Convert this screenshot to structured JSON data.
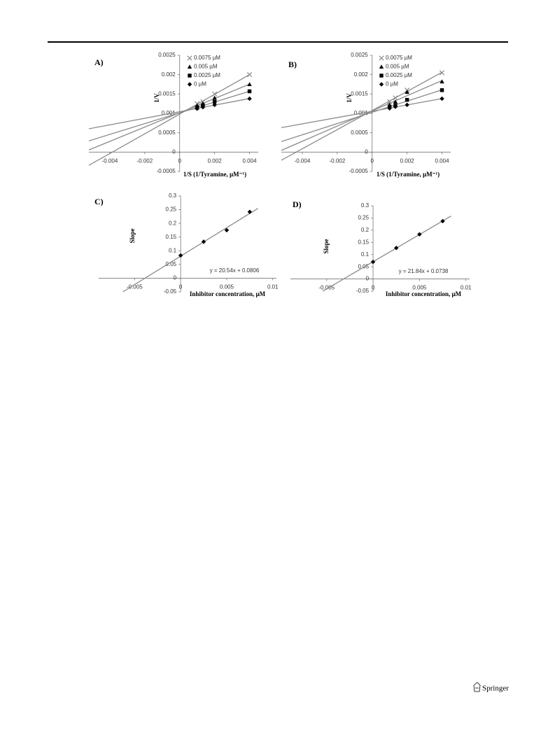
{
  "chart_data": [
    {
      "type": "scatter",
      "panel": "A)",
      "y_label": "1/V",
      "x_label": "1/S (1/Tyramine, µM⁻¹)",
      "x": [
        0.001,
        0.00133,
        0.002,
        0.004
      ],
      "xlim": [
        -0.0052,
        0.0045
      ],
      "xticks": [
        -0.004,
        -0.002,
        0,
        0.002,
        0.004
      ],
      "ylim": [
        -0.0005,
        0.0025
      ],
      "yticks": [
        -0.0005,
        0,
        0.0005,
        0.001,
        0.0015,
        0.002,
        0.0025
      ],
      "trendline": true,
      "line_color": "#8a8a8a",
      "series": [
        {
          "name": "0.0075 µM",
          "marker": "cross",
          "color": "#8a8a8a",
          "values": [
            0.00125,
            0.0013,
            0.0015,
            0.002
          ]
        },
        {
          "name": "0.005 µM",
          "marker": "triangle",
          "color": "#000000",
          "values": [
            0.0012,
            0.00125,
            0.0014,
            0.00175
          ]
        },
        {
          "name": "0.0025 µM",
          "marker": "square",
          "color": "#000000",
          "values": [
            0.00115,
            0.0012,
            0.0013,
            0.00157
          ]
        },
        {
          "name": "0 µM",
          "marker": "diamond",
          "color": "#000000",
          "values": [
            0.00112,
            0.00116,
            0.00122,
            0.00138
          ]
        }
      ]
    },
    {
      "type": "scatter",
      "panel": "B)",
      "y_label": "1/V",
      "x_label": "1/S (1/Tyramine, µM⁻¹)",
      "x": [
        0.001,
        0.00133,
        0.002,
        0.004
      ],
      "xlim": [
        -0.0052,
        0.0045
      ],
      "xticks": [
        -0.004,
        -0.002,
        0,
        0.002,
        0.004
      ],
      "ylim": [
        -0.0005,
        0.0025
      ],
      "yticks": [
        -0.0005,
        0,
        0.0005,
        0.001,
        0.0015,
        0.002,
        0.0025
      ],
      "trendline": true,
      "line_color": "#8a8a8a",
      "series": [
        {
          "name": "0.0075 µM",
          "marker": "cross",
          "color": "#8a8a8a",
          "values": [
            0.0013,
            0.0014,
            0.0016,
            0.00205
          ]
        },
        {
          "name": "0.005 µM",
          "marker": "triangle",
          "color": "#000000",
          "values": [
            0.00122,
            0.0013,
            0.00155,
            0.00182
          ]
        },
        {
          "name": "0.0025 µM",
          "marker": "square",
          "color": "#000000",
          "values": [
            0.00117,
            0.0012,
            0.00135,
            0.0016
          ]
        },
        {
          "name": "0 µM",
          "marker": "diamond",
          "color": "#000000",
          "values": [
            0.00113,
            0.00117,
            0.00122,
            0.00138
          ]
        }
      ]
    },
    {
      "type": "scatter",
      "panel": "C)",
      "y_label": "Slope",
      "x_label": "Inhibitor concentration, µM",
      "annotation": "y = 20.54x + 0.0806",
      "x": [
        0,
        0.0025,
        0.005,
        0.0075
      ],
      "xlim": [
        -0.0089,
        0.0104
      ],
      "xticks": [
        -0.005,
        0,
        0.005,
        0.01
      ],
      "ylim": [
        -0.05,
        0.3
      ],
      "yticks": [
        -0.05,
        0,
        0.05,
        0.1,
        0.15,
        0.2,
        0.25,
        0.3
      ],
      "trendline": true,
      "line_color": "#8a8a8a",
      "series": [
        {
          "marker": "diamond",
          "color": "#000000",
          "values": [
            0.083,
            0.133,
            0.175,
            0.242
          ]
        }
      ]
    },
    {
      "type": "scatter",
      "panel": "D)",
      "y_label": "Slope",
      "x_label": "Inhibitor concentration, µM",
      "annotation": "y = 21.84x + 0.0738",
      "x": [
        0,
        0.0025,
        0.005,
        0.0075
      ],
      "xlim": [
        -0.0089,
        0.0104
      ],
      "xticks": [
        -0.005,
        0,
        0.005,
        0.01
      ],
      "ylim": [
        -0.05,
        0.3
      ],
      "yticks": [
        -0.05,
        0,
        0.05,
        0.1,
        0.15,
        0.2,
        0.25,
        0.3
      ],
      "trendline": true,
      "line_color": "#8a8a8a",
      "series": [
        {
          "marker": "diamond",
          "color": "#000000",
          "values": [
            0.07,
            0.127,
            0.183,
            0.237
          ]
        }
      ]
    }
  ],
  "footer": {
    "publisher": "Springer"
  }
}
